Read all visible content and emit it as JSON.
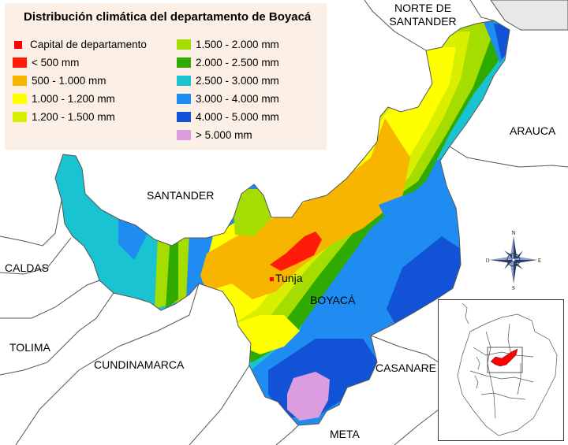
{
  "legend": {
    "title": "Distribución climática del departamento de Boyacá",
    "items": [
      {
        "label": "Capital de departamento",
        "color": "#ff0000",
        "kind": "marker"
      },
      {
        "label": "< 500 mm",
        "color": "#ff1a0a"
      },
      {
        "label": "500 - 1.000 mm",
        "color": "#f7b500"
      },
      {
        "label": "1.000 - 1.200 mm",
        "color": "#ffff00"
      },
      {
        "label": "1.200 - 1.500 mm",
        "color": "#d8f000"
      },
      {
        "label": "1.500 - 2.000 mm",
        "color": "#a6dd00"
      },
      {
        "label": "2.000 - 2.500 mm",
        "color": "#2faa00"
      },
      {
        "label": "2.500 - 3.000 mm",
        "color": "#19c3d2"
      },
      {
        "label": "3.000 - 4.000 mm",
        "color": "#1f8cf2"
      },
      {
        "label": "4.000 - 5.000 mm",
        "color": "#1152d6"
      },
      {
        "label": "> 5.000 mm",
        "color": "#dc9de0"
      }
    ]
  },
  "regions": {
    "norte_de_santander": [
      "NORTE DE",
      "SANTANDER"
    ],
    "arauca": "ARAUCA",
    "santander": "SANTANDER",
    "caldas": "CALDAS",
    "tolima": "TOLIMA",
    "cundinamarca": "CUNDINAMARCA",
    "boyaca": "BOYACÁ",
    "casanare": "CASANARE",
    "meta": "META"
  },
  "capital": {
    "name": "Tunja"
  },
  "compass": {
    "n": "N",
    "s": "S",
    "e": "E",
    "o": "O"
  },
  "colors": {
    "border_lines": "#555555",
    "neighbor_gray": "#e8e8e8",
    "inset_highlight": "#ff0000"
  }
}
